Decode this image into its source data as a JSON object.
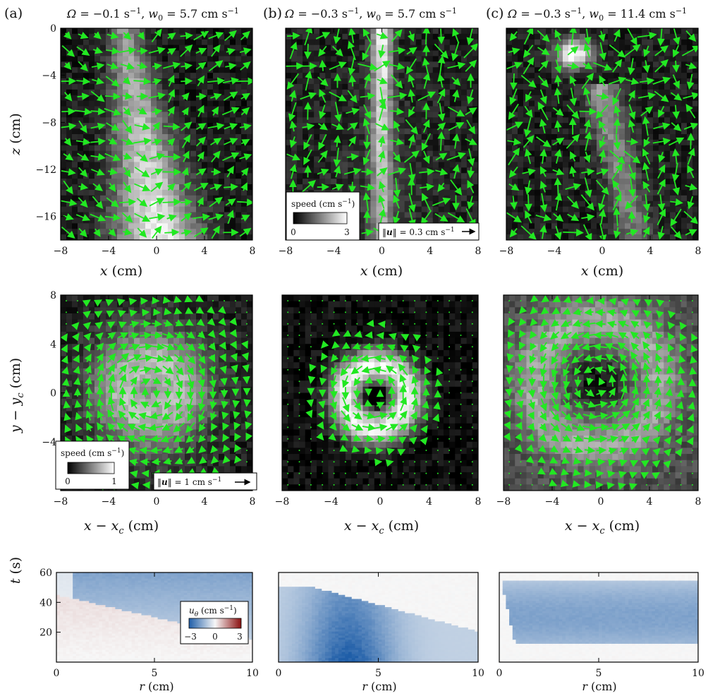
{
  "columns": [
    {
      "letter": "(a)",
      "omega_label": "Ω",
      "omega_value": "−0.1",
      "w_label": "w",
      "w_sub": "0",
      "w_value": "5.7"
    },
    {
      "letter": "(b)",
      "omega_label": "Ω",
      "omega_value": "−0.3",
      "w_label": "w",
      "w_sub": "0",
      "w_value": "5.7"
    },
    {
      "letter": "(c)",
      "omega_label": "Ω",
      "omega_value": "−0.3",
      "w_label": "w",
      "w_sub": "0",
      "w_value": "11.4"
    }
  ],
  "units": {
    "per_s": "s",
    "cm_per_s": "cm s",
    "exp": "−1"
  },
  "rows": {
    "top": {
      "xlabel_var": "x",
      "xlabel_unit": " (cm)",
      "ylabel_var": "z",
      "ylabel_unit": " (cm)"
    },
    "middle": {
      "xlabel_var": "x",
      "xlabel_sub": "c",
      "xlabel_unit": " (cm)",
      "ylabel_var": "y",
      "ylabel_sub": "c",
      "ylabel_unit": " (cm)"
    },
    "bottom": {
      "xlabel_var": "r",
      "xlabel_unit": " (cm)",
      "ylabel_var": "t",
      "ylabel_unit": " (s)"
    }
  },
  "legends": {
    "top_speed": {
      "title": "speed (cm s",
      "min": "0",
      "max": "3"
    },
    "top_arrow": {
      "label_pre": "‖",
      "label_var": "u",
      "label_post": "‖ = 0.3 cm s"
    },
    "mid_speed": {
      "title": "speed (cm s",
      "min": "0",
      "max": "1"
    },
    "mid_arrow": {
      "label_pre": "‖",
      "label_var": "u",
      "label_post": "‖ = 1 cm s"
    },
    "utheta": {
      "title_var": "u",
      "title_sub": "θ",
      "title_unit": " (cm s",
      "min": "−3",
      "mid": "0",
      "max": "3"
    }
  },
  "chart_data": [
    {
      "type": "heatmap",
      "panel": "a-top",
      "field": "speed with velocity vectors",
      "xlim": [
        -8,
        8
      ],
      "ylim": [
        -18,
        0
      ],
      "xticks": [
        "−8",
        "−4",
        "0",
        "4",
        "8"
      ],
      "yticks": [
        "0",
        "−4",
        "−8",
        "−12",
        "−16"
      ],
      "yticks_values": [
        0,
        -4,
        -8,
        -12,
        -16
      ],
      "colorbar_range": [
        0,
        3
      ],
      "colormap": "gray"
    },
    {
      "type": "heatmap",
      "panel": "b-top",
      "field": "speed with velocity vectors",
      "xlim": [
        -8,
        8
      ],
      "ylim": [
        -18,
        0
      ],
      "xticks": [
        "−8",
        "−4",
        "0",
        "4",
        "8"
      ],
      "colorbar_range": [
        0,
        3
      ],
      "colormap": "gray",
      "reference_arrow_cm_per_s": 0.3
    },
    {
      "type": "heatmap",
      "panel": "c-top",
      "field": "speed with velocity vectors",
      "xlim": [
        -8,
        8
      ],
      "ylim": [
        -18,
        0
      ],
      "xticks": [
        "−8",
        "−4",
        "0",
        "4",
        "8"
      ],
      "colorbar_range": [
        0,
        3
      ],
      "colormap": "gray"
    },
    {
      "type": "heatmap",
      "panel": "a-middle",
      "field": "horizontal speed with velocity vectors",
      "xlim": [
        -8,
        8
      ],
      "ylim": [
        -8,
        8
      ],
      "xticks": [
        "−8",
        "−4",
        "0",
        "4",
        "8"
      ],
      "yticks": [
        "8",
        "4",
        "0",
        "−4"
      ],
      "yticks_values": [
        8,
        4,
        0,
        -4
      ],
      "colorbar_range": [
        0,
        1
      ],
      "colormap": "gray",
      "reference_arrow_cm_per_s": 1
    },
    {
      "type": "heatmap",
      "panel": "b-middle",
      "field": "horizontal speed with velocity vectors",
      "xlim": [
        -8,
        8
      ],
      "ylim": [
        -8,
        8
      ],
      "xticks": [
        "−8",
        "−4",
        "0",
        "4",
        "8"
      ],
      "colorbar_range": [
        0,
        1
      ],
      "colormap": "gray"
    },
    {
      "type": "heatmap",
      "panel": "c-middle",
      "field": "horizontal speed with velocity vectors",
      "xlim": [
        -8,
        8
      ],
      "ylim": [
        -8,
        8
      ],
      "xticks": [
        "−8",
        "−4",
        "0",
        "4",
        "8"
      ],
      "colorbar_range": [
        0,
        1
      ],
      "colormap": "gray"
    },
    {
      "type": "heatmap",
      "panel": "a-bottom",
      "field": "u_theta(r,t)",
      "xlim": [
        0,
        10
      ],
      "ylim": [
        0,
        60
      ],
      "xticks": [
        "0",
        "5",
        "10"
      ],
      "yticks": [
        "60",
        "40",
        "20"
      ],
      "yticks_values": [
        60,
        40,
        20
      ],
      "colorbar_range": [
        -3,
        3
      ],
      "colormap": "diverging blue-white-red"
    },
    {
      "type": "heatmap",
      "panel": "b-bottom",
      "field": "u_theta(r,t)",
      "xlim": [
        0,
        10
      ],
      "ylim": [
        0,
        60
      ],
      "xticks": [
        "0",
        "5",
        "10"
      ],
      "colorbar_range": [
        -3,
        3
      ],
      "colormap": "diverging blue-white-red"
    },
    {
      "type": "heatmap",
      "panel": "c-bottom",
      "field": "u_theta(r,t)",
      "xlim": [
        0,
        10
      ],
      "ylim": [
        0,
        60
      ],
      "xticks": [
        "0",
        "5",
        "10"
      ],
      "colorbar_range": [
        -3,
        3
      ],
      "colormap": "diverging blue-white-red"
    }
  ],
  "colors": {
    "vector": "#22e822",
    "utheta_neg": "#2c6fb7",
    "utheta_pos": "#9b1c1c"
  }
}
